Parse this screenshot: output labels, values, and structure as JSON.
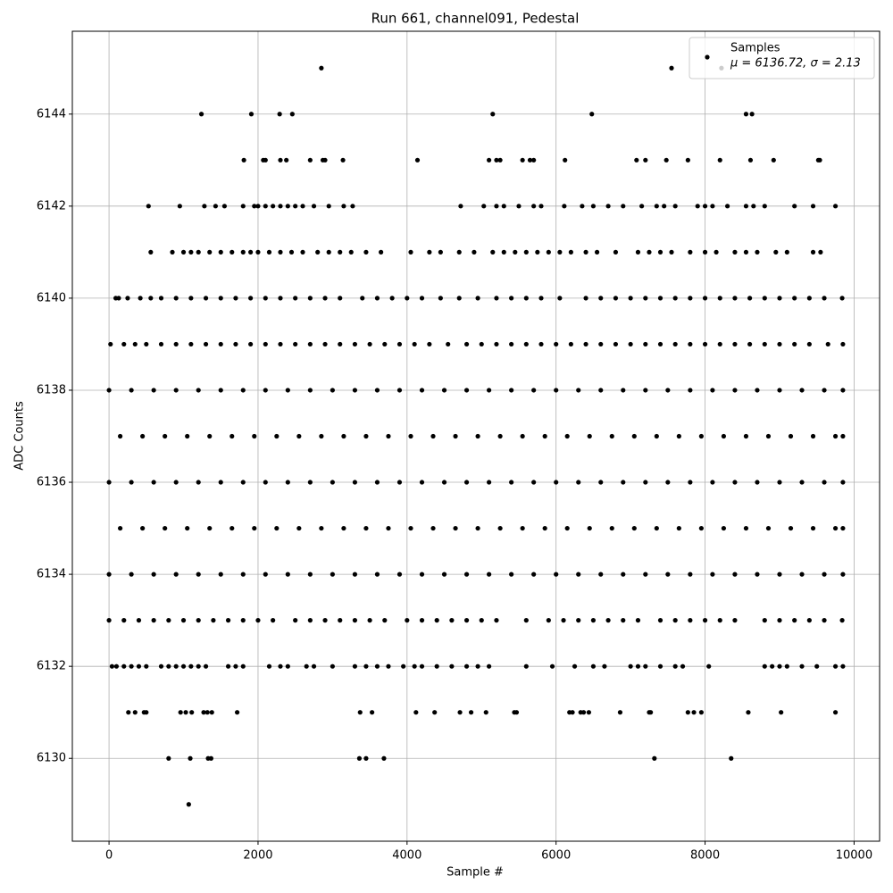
{
  "chart_data": {
    "type": "scatter",
    "title": "Run 661, channel091, Pedestal",
    "x_label": "Sample #",
    "y_label": "ADC Counts",
    "legend_note": "μ = 6136.72, σ = 2.13",
    "legend": "upper right",
    "grid": true,
    "xlim": [
      -492.5,
      10342.5
    ],
    "xticks": [
      0,
      2000,
      4000,
      6000,
      8000,
      10000
    ],
    "ylim": [
      6128.2,
      6145.8
    ],
    "yticks": [
      6130,
      6132,
      6134,
      6136,
      6138,
      6140,
      6142,
      6144
    ],
    "x": [
      2850,
      7550,
      8220,
      1240,
      1910,
      2290,
      2460,
      5150,
      6480,
      8550,
      8630,
      1810,
      2070,
      2100,
      2300,
      2380,
      2700,
      2870,
      2900,
      3140,
      4140,
      5100,
      5200,
      5250,
      5550,
      5650,
      5700,
      6120,
      7080,
      7200,
      7480,
      7770,
      8200,
      8610,
      8920,
      9520,
      9540,
      530,
      950,
      1280,
      1430,
      1550,
      1800,
      1950,
      2000,
      2100,
      2200,
      2300,
      2400,
      2500,
      2600,
      2750,
      2950,
      3150,
      3270,
      4720,
      5030,
      5200,
      5300,
      5500,
      5700,
      5800,
      6110,
      6350,
      6500,
      6700,
      6900,
      7150,
      7350,
      7450,
      7600,
      7900,
      8000,
      8100,
      8300,
      8550,
      8650,
      8800,
      9200,
      9450,
      9750,
      560,
      850,
      1000,
      1100,
      1200,
      1350,
      1500,
      1650,
      1800,
      1900,
      2000,
      2150,
      2300,
      2450,
      2600,
      2800,
      2950,
      3100,
      3250,
      3450,
      3650,
      4050,
      4300,
      4450,
      4700,
      4900,
      5150,
      5300,
      5450,
      5600,
      5750,
      5900,
      6050,
      6200,
      6400,
      6550,
      6800,
      7100,
      7250,
      7400,
      7550,
      7800,
      8000,
      8150,
      8400,
      8550,
      8700,
      8950,
      9100,
      9450,
      9550,
      90,
      130,
      250,
      420,
      560,
      700,
      900,
      1100,
      1300,
      1500,
      1700,
      1900,
      2100,
      2300,
      2500,
      2700,
      2900,
      3100,
      3400,
      3600,
      3800,
      4000,
      4200,
      4450,
      4700,
      4950,
      5200,
      5400,
      5600,
      5800,
      6050,
      6400,
      6600,
      6800,
      7000,
      7200,
      7400,
      7600,
      7800,
      8000,
      8200,
      8400,
      8600,
      8800,
      9000,
      9200,
      9400,
      9600,
      9840,
      20,
      200,
      350,
      500,
      700,
      900,
      1100,
      1300,
      1500,
      1700,
      1900,
      2100,
      2300,
      2500,
      2700,
      2900,
      3100,
      3300,
      3500,
      3700,
      3900,
      4100,
      4300,
      4550,
      4800,
      5000,
      5200,
      5400,
      5600,
      5800,
      6000,
      6200,
      6400,
      6600,
      6800,
      7000,
      7200,
      7400,
      7600,
      7800,
      8000,
      8200,
      8400,
      8600,
      8800,
      9000,
      9200,
      9400,
      9650,
      9850,
      0,
      300,
      600,
      900,
      1200,
      1500,
      1800,
      2100,
      2400,
      2700,
      3000,
      3300,
      3600,
      3900,
      4200,
      4500,
      4800,
      5100,
      5400,
      5700,
      6000,
      6300,
      6600,
      6900,
      7200,
      7500,
      7800,
      8100,
      8400,
      8700,
      9000,
      9300,
      9600,
      9850,
      150,
      450,
      750,
      1050,
      1350,
      1650,
      1950,
      2250,
      2550,
      2850,
      3150,
      3450,
      3750,
      4050,
      4350,
      4650,
      4950,
      5250,
      5550,
      5850,
      6150,
      6450,
      6750,
      7050,
      7350,
      7650,
      7950,
      8250,
      8550,
      8850,
      9150,
      9450,
      9750,
      9850,
      0,
      300,
      600,
      900,
      1200,
      1500,
      1800,
      2100,
      2400,
      2700,
      3000,
      3300,
      3600,
      3900,
      4200,
      4500,
      4800,
      5100,
      5400,
      5700,
      6000,
      6300,
      6600,
      6900,
      7200,
      7500,
      7800,
      8100,
      8400,
      8700,
      9000,
      9300,
      9600,
      9850,
      150,
      450,
      750,
      1050,
      1350,
      1650,
      1950,
      2250,
      2550,
      2850,
      3150,
      3450,
      3750,
      4050,
      4350,
      4650,
      4950,
      5250,
      5550,
      5850,
      6150,
      6450,
      6750,
      7050,
      7350,
      7650,
      7950,
      8250,
      8550,
      8850,
      9150,
      9450,
      9750,
      9850,
      0,
      300,
      600,
      900,
      1200,
      1500,
      1800,
      2100,
      2400,
      2700,
      3000,
      3300,
      3600,
      3900,
      4200,
      4500,
      4800,
      5100,
      5400,
      5700,
      6000,
      6300,
      6600,
      6900,
      7200,
      7500,
      7800,
      8100,
      8400,
      8700,
      9000,
      9300,
      9600,
      9850,
      0,
      200,
      400,
      600,
      800,
      1000,
      1200,
      1400,
      1600,
      1800,
      2000,
      2200,
      2500,
      2700,
      2900,
      3100,
      3300,
      3500,
      3700,
      4000,
      4200,
      4400,
      4600,
      4800,
      5000,
      5200,
      5600,
      5900,
      6100,
      6300,
      6500,
      6700,
      6900,
      7100,
      7400,
      7600,
      7800,
      8000,
      8200,
      8400,
      8800,
      9000,
      9200,
      9400,
      9600,
      9840,
      40,
      100,
      200,
      300,
      400,
      500,
      700,
      800,
      900,
      1000,
      1100,
      1200,
      1300,
      1600,
      1700,
      1800,
      2150,
      2300,
      2400,
      2650,
      2750,
      3000,
      3300,
      3450,
      3600,
      3750,
      3950,
      4100,
      4200,
      4400,
      4600,
      4800,
      4950,
      5100,
      5600,
      5950,
      6250,
      6500,
      6650,
      7000,
      7100,
      7200,
      7400,
      7600,
      7700,
      8050,
      8800,
      8900,
      9000,
      9100,
      9300,
      9500,
      9750,
      9850,
      260,
      350,
      470,
      500,
      960,
      1030,
      1110,
      1270,
      1320,
      1380,
      1720,
      3370,
      3530,
      4120,
      4370,
      4710,
      4860,
      5060,
      5440,
      5470,
      6180,
      6220,
      6330,
      6370,
      6440,
      6860,
      7250,
      7270,
      7770,
      7850,
      7950,
      8580,
      9020,
      9750,
      800,
      1090,
      1330,
      1370,
      3360,
      3450,
      3690,
      7320,
      8350,
      1070
    ],
    "series": [
      {
        "name": "Samples",
        "color": "#000000",
        "values": [
          6145,
          6145,
          6145,
          6144,
          6144,
          6144,
          6144,
          6144,
          6144,
          6144,
          6144,
          6143,
          6143,
          6143,
          6143,
          6143,
          6143,
          6143,
          6143,
          6143,
          6143,
          6143,
          6143,
          6143,
          6143,
          6143,
          6143,
          6143,
          6143,
          6143,
          6143,
          6143,
          6143,
          6143,
          6143,
          6143,
          6143,
          6142,
          6142,
          6142,
          6142,
          6142,
          6142,
          6142,
          6142,
          6142,
          6142,
          6142,
          6142,
          6142,
          6142,
          6142,
          6142,
          6142,
          6142,
          6142,
          6142,
          6142,
          6142,
          6142,
          6142,
          6142,
          6142,
          6142,
          6142,
          6142,
          6142,
          6142,
          6142,
          6142,
          6142,
          6142,
          6142,
          6142,
          6142,
          6142,
          6142,
          6142,
          6142,
          6142,
          6142,
          6141,
          6141,
          6141,
          6141,
          6141,
          6141,
          6141,
          6141,
          6141,
          6141,
          6141,
          6141,
          6141,
          6141,
          6141,
          6141,
          6141,
          6141,
          6141,
          6141,
          6141,
          6141,
          6141,
          6141,
          6141,
          6141,
          6141,
          6141,
          6141,
          6141,
          6141,
          6141,
          6141,
          6141,
          6141,
          6141,
          6141,
          6141,
          6141,
          6141,
          6141,
          6141,
          6141,
          6141,
          6141,
          6141,
          6141,
          6141,
          6141,
          6141,
          6141,
          6140,
          6140,
          6140,
          6140,
          6140,
          6140,
          6140,
          6140,
          6140,
          6140,
          6140,
          6140,
          6140,
          6140,
          6140,
          6140,
          6140,
          6140,
          6140,
          6140,
          6140,
          6140,
          6140,
          6140,
          6140,
          6140,
          6140,
          6140,
          6140,
          6140,
          6140,
          6140,
          6140,
          6140,
          6140,
          6140,
          6140,
          6140,
          6140,
          6140,
          6140,
          6140,
          6140,
          6140,
          6140,
          6140,
          6140,
          6140,
          6140,
          6139,
          6139,
          6139,
          6139,
          6139,
          6139,
          6139,
          6139,
          6139,
          6139,
          6139,
          6139,
          6139,
          6139,
          6139,
          6139,
          6139,
          6139,
          6139,
          6139,
          6139,
          6139,
          6139,
          6139,
          6139,
          6139,
          6139,
          6139,
          6139,
          6139,
          6139,
          6139,
          6139,
          6139,
          6139,
          6139,
          6139,
          6139,
          6139,
          6139,
          6139,
          6139,
          6139,
          6139,
          6139,
          6139,
          6139,
          6139,
          6139,
          6139,
          6138,
          6138,
          6138,
          6138,
          6138,
          6138,
          6138,
          6138,
          6138,
          6138,
          6138,
          6138,
          6138,
          6138,
          6138,
          6138,
          6138,
          6138,
          6138,
          6138,
          6138,
          6138,
          6138,
          6138,
          6138,
          6138,
          6138,
          6138,
          6138,
          6138,
          6138,
          6138,
          6138,
          6138,
          6137,
          6137,
          6137,
          6137,
          6137,
          6137,
          6137,
          6137,
          6137,
          6137,
          6137,
          6137,
          6137,
          6137,
          6137,
          6137,
          6137,
          6137,
          6137,
          6137,
          6137,
          6137,
          6137,
          6137,
          6137,
          6137,
          6137,
          6137,
          6137,
          6137,
          6137,
          6137,
          6137,
          6137,
          6136,
          6136,
          6136,
          6136,
          6136,
          6136,
          6136,
          6136,
          6136,
          6136,
          6136,
          6136,
          6136,
          6136,
          6136,
          6136,
          6136,
          6136,
          6136,
          6136,
          6136,
          6136,
          6136,
          6136,
          6136,
          6136,
          6136,
          6136,
          6136,
          6136,
          6136,
          6136,
          6136,
          6136,
          6135,
          6135,
          6135,
          6135,
          6135,
          6135,
          6135,
          6135,
          6135,
          6135,
          6135,
          6135,
          6135,
          6135,
          6135,
          6135,
          6135,
          6135,
          6135,
          6135,
          6135,
          6135,
          6135,
          6135,
          6135,
          6135,
          6135,
          6135,
          6135,
          6135,
          6135,
          6135,
          6135,
          6135,
          6134,
          6134,
          6134,
          6134,
          6134,
          6134,
          6134,
          6134,
          6134,
          6134,
          6134,
          6134,
          6134,
          6134,
          6134,
          6134,
          6134,
          6134,
          6134,
          6134,
          6134,
          6134,
          6134,
          6134,
          6134,
          6134,
          6134,
          6134,
          6134,
          6134,
          6134,
          6134,
          6134,
          6134,
          6133,
          6133,
          6133,
          6133,
          6133,
          6133,
          6133,
          6133,
          6133,
          6133,
          6133,
          6133,
          6133,
          6133,
          6133,
          6133,
          6133,
          6133,
          6133,
          6133,
          6133,
          6133,
          6133,
          6133,
          6133,
          6133,
          6133,
          6133,
          6133,
          6133,
          6133,
          6133,
          6133,
          6133,
          6133,
          6133,
          6133,
          6133,
          6133,
          6133,
          6133,
          6133,
          6133,
          6133,
          6133,
          6133,
          6132,
          6132,
          6132,
          6132,
          6132,
          6132,
          6132,
          6132,
          6132,
          6132,
          6132,
          6132,
          6132,
          6132,
          6132,
          6132,
          6132,
          6132,
          6132,
          6132,
          6132,
          6132,
          6132,
          6132,
          6132,
          6132,
          6132,
          6132,
          6132,
          6132,
          6132,
          6132,
          6132,
          6132,
          6132,
          6132,
          6132,
          6132,
          6132,
          6132,
          6132,
          6132,
          6132,
          6132,
          6132,
          6132,
          6132,
          6132,
          6132,
          6132,
          6132,
          6132,
          6132,
          6132,
          6131,
          6131,
          6131,
          6131,
          6131,
          6131,
          6131,
          6131,
          6131,
          6131,
          6131,
          6131,
          6131,
          6131,
          6131,
          6131,
          6131,
          6131,
          6131,
          6131,
          6131,
          6131,
          6131,
          6131,
          6131,
          6131,
          6131,
          6131,
          6131,
          6131,
          6131,
          6131,
          6131,
          6131,
          6130,
          6130,
          6130,
          6130,
          6130,
          6130,
          6130,
          6130,
          6130,
          6129
        ]
      }
    ]
  }
}
